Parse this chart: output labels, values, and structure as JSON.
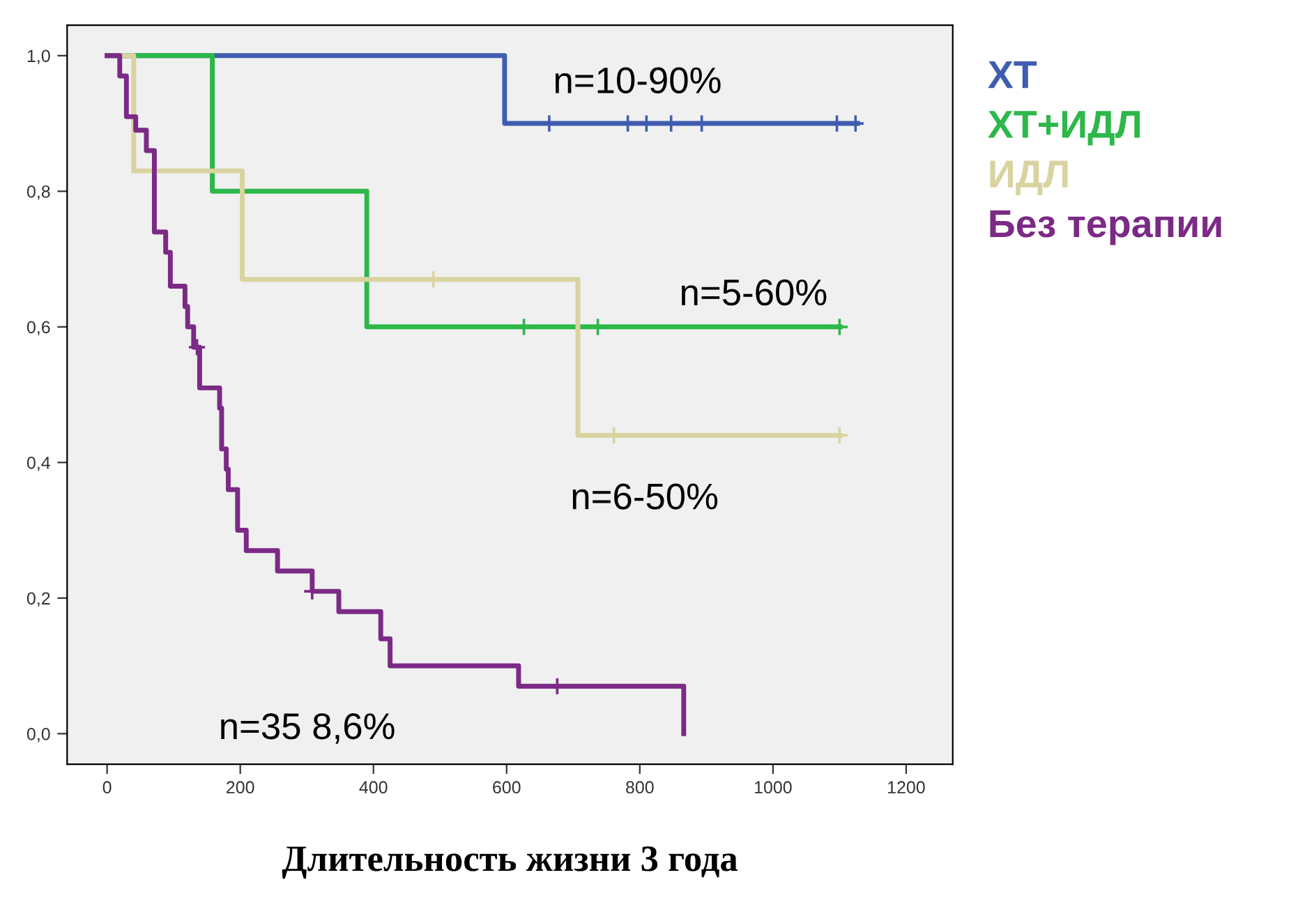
{
  "chart_data": {
    "type": "step",
    "xlabel": "Длительность жизни 3 года",
    "xlim": [
      -60,
      1270
    ],
    "xticks": [
      0,
      200,
      400,
      600,
      800,
      1000,
      1200
    ],
    "ylim": [
      -0.045,
      1.045
    ],
    "yticks": [
      {
        "value": 0.0,
        "label": "0,0"
      },
      {
        "value": 0.2,
        "label": "0,2"
      },
      {
        "value": 0.4,
        "label": "0,4"
      },
      {
        "value": 0.6,
        "label": "0,6"
      },
      {
        "value": 0.8,
        "label": "0,8"
      },
      {
        "value": 1.0,
        "label": "1,0"
      }
    ],
    "grid": false,
    "legend": "right",
    "line_style": "solid",
    "series": [
      {
        "name": "ХТ",
        "color": "#3f5db0",
        "x": [
          0,
          597,
          1127
        ],
        "values": [
          1.0,
          0.9,
          0.9
        ]
      },
      {
        "name": "ХТ+ИДЛ",
        "color": "#2db84a",
        "x": [
          0,
          158,
          390,
          1101
        ],
        "values": [
          1.0,
          0.8,
          0.6,
          0.6
        ]
      },
      {
        "name": "ИДЛ",
        "color": "#d9d3a0",
        "x": [
          0,
          40,
          203,
          707,
          1101
        ],
        "values": [
          1.0,
          0.83,
          0.67,
          0.44,
          0.44
        ]
      },
      {
        "name": "Без терапии",
        "color": "#7b2a85",
        "x": [
          0,
          19,
          29,
          43,
          59,
          71,
          88,
          95,
          117,
          121,
          130,
          139,
          169,
          172,
          179,
          182,
          196,
          209,
          256,
          308,
          348,
          411,
          425,
          618,
          866
        ],
        "values": [
          1.0,
          0.97,
          0.91,
          0.89,
          0.86,
          0.74,
          0.71,
          0.66,
          0.63,
          0.6,
          0.57,
          0.51,
          0.48,
          0.42,
          0.39,
          0.36,
          0.3,
          0.27,
          0.24,
          0.21,
          0.18,
          0.14,
          0.1,
          0.07,
          0.0
        ]
      },
      {
        "type": "scatter",
        "marker": "cross",
        "color": "#3f5db0",
        "x": [
          664,
          782,
          810,
          847,
          893,
          1096,
          1124
        ],
        "values": [
          0.9,
          0.9,
          0.9,
          0.9,
          0.9,
          0.9,
          0.9
        ]
      },
      {
        "type": "scatter",
        "marker": "cross",
        "color": "#2db84a",
        "x": [
          626,
          737,
          1100
        ],
        "values": [
          0.6,
          0.6,
          0.6
        ]
      },
      {
        "type": "scatter",
        "marker": "cross",
        "color": "#d9d3a0",
        "x": [
          490,
          761,
          1100
        ],
        "values": [
          0.67,
          0.44,
          0.44
        ]
      },
      {
        "type": "scatter",
        "marker": "cross",
        "color": "#7b2a85",
        "x": [
          135,
          308,
          676
        ],
        "values": [
          0.57,
          0.21,
          0.07
        ]
      }
    ],
    "annotations": [
      "n=10-90%",
      "n=5-60%",
      "n=6-50%",
      "n=35 8,6%"
    ]
  }
}
